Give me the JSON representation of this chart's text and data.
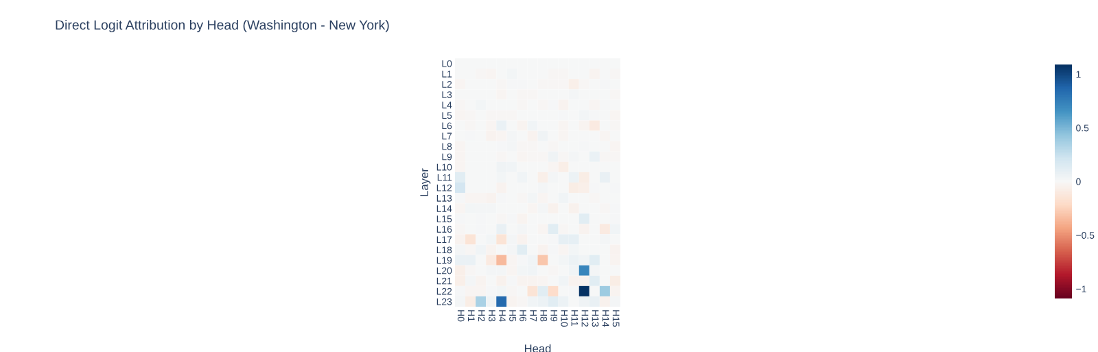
{
  "chart_data": {
    "type": "heatmap",
    "title": "Direct Logit Attribution by Head (Washington - New York)",
    "xlabel": "Head",
    "ylabel": "Layer",
    "categories": [
      "H0",
      "H1",
      "H2",
      "H3",
      "H4",
      "H5",
      "H6",
      "H7",
      "H8",
      "H9",
      "H10",
      "H11",
      "H12",
      "H13",
      "H14",
      "H15"
    ],
    "y_categories": [
      "L0",
      "L1",
      "L2",
      "L3",
      "L4",
      "L5",
      "L6",
      "L7",
      "L8",
      "L9",
      "L10",
      "L11",
      "L12",
      "L13",
      "L14",
      "L15",
      "L16",
      "L17",
      "L18",
      "L19",
      "L20",
      "L21",
      "L22",
      "L23"
    ],
    "cells": [
      [
        0,
        0,
        0,
        0,
        0,
        0,
        0,
        0,
        0,
        0,
        0,
        0,
        0,
        0,
        0,
        0
      ],
      [
        0,
        0,
        -0.01,
        -0.02,
        0,
        0.03,
        0,
        0,
        0,
        -0.01,
        -0.01,
        0,
        0,
        -0.03,
        0,
        -0.01
      ],
      [
        -0.02,
        0,
        0,
        0,
        -0.01,
        0.01,
        0.01,
        0,
        -0.01,
        -0.01,
        -0.01,
        -0.06,
        -0.01,
        0,
        0.01,
        0
      ],
      [
        0,
        0,
        0,
        0,
        -0.02,
        0,
        -0.01,
        -0.01,
        0,
        0,
        0,
        0.02,
        0,
        0,
        0,
        -0.01
      ],
      [
        -0.01,
        0,
        0.03,
        0,
        0,
        0,
        -0.01,
        0,
        -0.01,
        0.01,
        -0.04,
        0,
        0,
        -0.02,
        0.01,
        0
      ],
      [
        -0.02,
        -0.01,
        0,
        -0.01,
        -0.01,
        -0.01,
        0,
        0,
        0,
        0,
        0.01,
        0,
        0.03,
        0.01,
        0,
        -0.02
      ],
      [
        0,
        -0.01,
        0,
        -0.02,
        0.07,
        0,
        -0.03,
        0.04,
        0,
        0,
        -0.02,
        0,
        -0.03,
        -0.1,
        0,
        -0.01
      ],
      [
        0,
        0.01,
        0,
        -0.04,
        -0.02,
        0.02,
        0,
        -0.04,
        0.05,
        0,
        -0.02,
        0,
        0,
        0,
        -0.02,
        0
      ],
      [
        -0.02,
        0,
        0,
        0,
        0.01,
        0.02,
        -0.01,
        -0.01,
        0,
        -0.01,
        0,
        0,
        0.01,
        0,
        0,
        -0.02
      ],
      [
        -0.02,
        0,
        0,
        0,
        -0.01,
        0,
        -0.02,
        -0.01,
        -0.01,
        0.05,
        -0.01,
        0.02,
        0,
        0.07,
        -0.01,
        -0.01
      ],
      [
        -0.02,
        0,
        0,
        0,
        0.05,
        0.04,
        0,
        0,
        0,
        -0.02,
        -0.07,
        0,
        0,
        0,
        0,
        0
      ],
      [
        0.12,
        0,
        0,
        0,
        0.03,
        0,
        0.04,
        0,
        -0.06,
        0.02,
        0,
        0.06,
        -0.08,
        0,
        0.08,
        0
      ],
      [
        0.2,
        0,
        0,
        0,
        -0.04,
        0,
        0,
        0,
        0.02,
        0,
        0,
        -0.08,
        -0.06,
        0.01,
        0,
        0.01
      ],
      [
        0.01,
        -0.02,
        -0.02,
        -0.04,
        0.01,
        0,
        -0.01,
        0.03,
        -0.02,
        0,
        0.04,
        0,
        0,
        -0.01,
        0,
        0
      ],
      [
        -0.02,
        0.03,
        0.02,
        0.02,
        0,
        0,
        0,
        -0.02,
        0.02,
        -0.05,
        0,
        -0.05,
        0,
        0,
        -0.01,
        0.01
      ],
      [
        0.01,
        0,
        0.01,
        0,
        -0.01,
        0.01,
        -0.03,
        0,
        0,
        0,
        0,
        0,
        0.12,
        0,
        0,
        0.01
      ],
      [
        -0.01,
        0,
        0.01,
        0,
        0.08,
        0,
        0.02,
        0,
        -0.02,
        0.12,
        -0.01,
        0,
        -0.04,
        0,
        -0.1,
        0.04
      ],
      [
        -0.04,
        -0.15,
        0,
        0.03,
        -0.15,
        0.02,
        -0.04,
        0,
        0,
        0.01,
        0.1,
        0.1,
        0,
        0,
        0.02,
        0
      ],
      [
        0.02,
        -0.01,
        0.04,
        -0.03,
        0,
        0.02,
        0.12,
        0,
        -0.04,
        0.01,
        -0.02,
        0.03,
        0,
        0,
        0,
        -0.04
      ],
      [
        0.07,
        0.07,
        0,
        -0.1,
        -0.35,
        -0.02,
        0.01,
        0.04,
        -0.3,
        0,
        0.03,
        0.06,
        0.04,
        0.12,
        0,
        -0.03
      ],
      [
        -0.06,
        -0.01,
        0,
        0.02,
        0.02,
        -0.02,
        0.03,
        0.04,
        0,
        -0.01,
        0,
        0.04,
        0.72,
        0.02,
        0,
        0
      ],
      [
        -0.06,
        0.02,
        -0.03,
        0,
        -0.05,
        0.01,
        -0.03,
        -0.03,
        -0.02,
        0,
        0.04,
        -0.04,
        -0.04,
        0.12,
        0,
        -0.08
      ],
      [
        0.01,
        -0.02,
        -0.02,
        0.01,
        0.03,
        -0.01,
        0,
        -0.15,
        0.12,
        -0.2,
        0,
        0.01,
        1.08,
        0,
        0.4,
        -0.03
      ],
      [
        0.02,
        -0.08,
        0.35,
        0.05,
        0.85,
        -0.03,
        -0.01,
        0.04,
        0.06,
        0.12,
        0.06,
        0,
        0.05,
        0.08,
        -0.05,
        0.02
      ]
    ],
    "clim": [
      -1.09,
      1.09
    ],
    "cticks": [
      {
        "value": -1,
        "label": "−1"
      },
      {
        "value": -0.5,
        "label": "−0.5"
      },
      0,
      0.5,
      1
    ],
    "colors": [
      "#67001f",
      "#b2182b",
      "#d6604d",
      "#f4a582",
      "#fddbc7",
      "#f7f7f7",
      "#d1e5f0",
      "#92c5de",
      "#4393c3",
      "#2166ac",
      "#053061"
    ],
    "grid": false
  }
}
